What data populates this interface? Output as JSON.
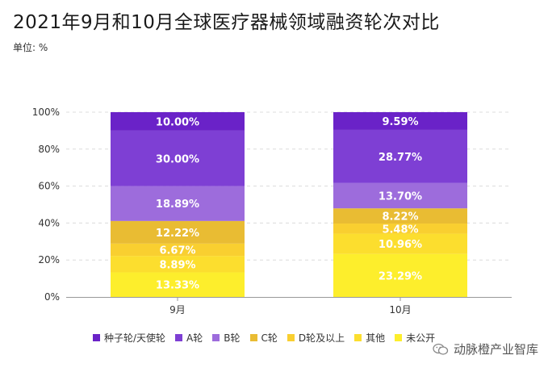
{
  "header": {
    "title": "2021年9月和10月全球医疗器械领域融资轮次对比",
    "unit": "单位: %"
  },
  "watermark": {
    "text": "动脉橙产业智库",
    "icon": "wechat-icon"
  },
  "chart_data": {
    "type": "bar",
    "stacked": true,
    "categories": [
      "9月",
      "10月"
    ],
    "ylim": [
      0,
      100
    ],
    "yticks": [
      "0%",
      "20%",
      "40%",
      "60%",
      "80%",
      "100%"
    ],
    "grid": true,
    "legend_position": "bottom",
    "series": [
      {
        "name": "未公开",
        "color": "#FDEE2C",
        "values": [
          13.33,
          23.29
        ],
        "labels": [
          "13.33%",
          "23.29%"
        ]
      },
      {
        "name": "其他",
        "color": "#FCDE2E",
        "values": [
          8.89,
          10.96
        ],
        "labels": [
          "8.89%",
          "10.96%"
        ]
      },
      {
        "name": "D轮及以上",
        "color": "#F9CF30",
        "values": [
          6.67,
          5.48
        ],
        "labels": [
          "6.67%",
          "5.48%"
        ]
      },
      {
        "name": "C轮",
        "color": "#E9BC33",
        "values": [
          12.22,
          8.22
        ],
        "labels": [
          "12.22%",
          "8.22%"
        ]
      },
      {
        "name": "B轮",
        "color": "#9D6CDC",
        "values": [
          18.89,
          13.7
        ],
        "labels": [
          "18.89%",
          "13.70%"
        ]
      },
      {
        "name": "A轮",
        "color": "#7E3FD4",
        "values": [
          30.0,
          28.77
        ],
        "labels": [
          "30.00%",
          "28.77%"
        ]
      },
      {
        "name": "种子轮/天使轮",
        "color": "#6A22C8",
        "values": [
          10.0,
          9.59
        ],
        "labels": [
          "10.00%",
          "9.59%"
        ]
      }
    ],
    "legend_order": [
      "种子轮/天使轮",
      "A轮",
      "B轮",
      "C轮",
      "D轮及以上",
      "其他",
      "未公开"
    ]
  }
}
